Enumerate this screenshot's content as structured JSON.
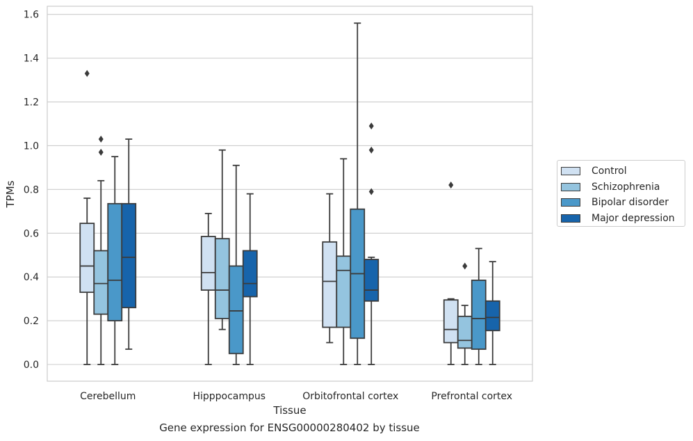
{
  "caption": "Gene expression for ENSG00000280402 by tissue",
  "chart_data": {
    "type": "box",
    "xlabel": "Tissue",
    "ylabel": "TPMs",
    "ylim": [
      -0.075,
      1.645
    ],
    "yticks": [
      "0.0",
      "0.2",
      "0.4",
      "0.6",
      "0.8",
      "1.0",
      "1.2",
      "1.4",
      "1.6"
    ],
    "grid": true,
    "legend_position": "right",
    "categories": [
      "Cerebellum",
      "Hipppocampus",
      "Orbitofrontal cortex",
      "Prefrontal cortex"
    ],
    "series": [
      {
        "name": "Control",
        "color": "#d0e1f2",
        "boxes": [
          {
            "min": 0.0,
            "q1": 0.33,
            "median": 0.45,
            "q3": 0.645,
            "max": 0.76,
            "outliers": [
              1.33
            ]
          },
          {
            "min": 0.0,
            "q1": 0.34,
            "median": 0.42,
            "q3": 0.585,
            "max": 0.69,
            "outliers": []
          },
          {
            "min": 0.1,
            "q1": 0.17,
            "median": 0.38,
            "q3": 0.56,
            "max": 0.78,
            "outliers": []
          },
          {
            "min": 0.0,
            "q1": 0.1,
            "median": 0.16,
            "q3": 0.295,
            "max": 0.3,
            "outliers": [
              0.82
            ]
          }
        ]
      },
      {
        "name": "Schizophrenia",
        "color": "#94c4df",
        "boxes": [
          {
            "min": 0.0,
            "q1": 0.23,
            "median": 0.37,
            "q3": 0.52,
            "max": 0.84,
            "outliers": [
              1.03,
              0.97
            ]
          },
          {
            "min": 0.16,
            "q1": 0.21,
            "median": 0.34,
            "q3": 0.575,
            "max": 0.98,
            "outliers": []
          },
          {
            "min": 0.0,
            "q1": 0.17,
            "median": 0.43,
            "q3": 0.495,
            "max": 0.94,
            "outliers": []
          },
          {
            "min": 0.0,
            "q1": 0.075,
            "median": 0.11,
            "q3": 0.22,
            "max": 0.27,
            "outliers": [
              0.45
            ]
          }
        ]
      },
      {
        "name": "Bipolar disorder",
        "color": "#4a98c9",
        "boxes": [
          {
            "min": 0.0,
            "q1": 0.2,
            "median": 0.385,
            "q3": 0.735,
            "max": 0.95,
            "outliers": []
          },
          {
            "min": 0.0,
            "q1": 0.05,
            "median": 0.245,
            "q3": 0.45,
            "max": 0.91,
            "outliers": []
          },
          {
            "min": 0.0,
            "q1": 0.12,
            "median": 0.415,
            "q3": 0.71,
            "max": 1.56,
            "outliers": []
          },
          {
            "min": 0.0,
            "q1": 0.07,
            "median": 0.21,
            "q3": 0.385,
            "max": 0.53,
            "outliers": []
          }
        ]
      },
      {
        "name": "Major depression",
        "color": "#1764ab",
        "boxes": [
          {
            "min": 0.07,
            "q1": 0.26,
            "median": 0.49,
            "q3": 0.735,
            "max": 1.03,
            "outliers": []
          },
          {
            "min": 0.0,
            "q1": 0.31,
            "median": 0.37,
            "q3": 0.52,
            "max": 0.78,
            "outliers": []
          },
          {
            "min": 0.0,
            "q1": 0.29,
            "median": 0.34,
            "q3": 0.48,
            "max": 0.49,
            "outliers": [
              1.09,
              0.98,
              0.79
            ]
          },
          {
            "min": 0.0,
            "q1": 0.155,
            "median": 0.215,
            "q3": 0.29,
            "max": 0.47,
            "outliers": []
          }
        ]
      }
    ]
  }
}
